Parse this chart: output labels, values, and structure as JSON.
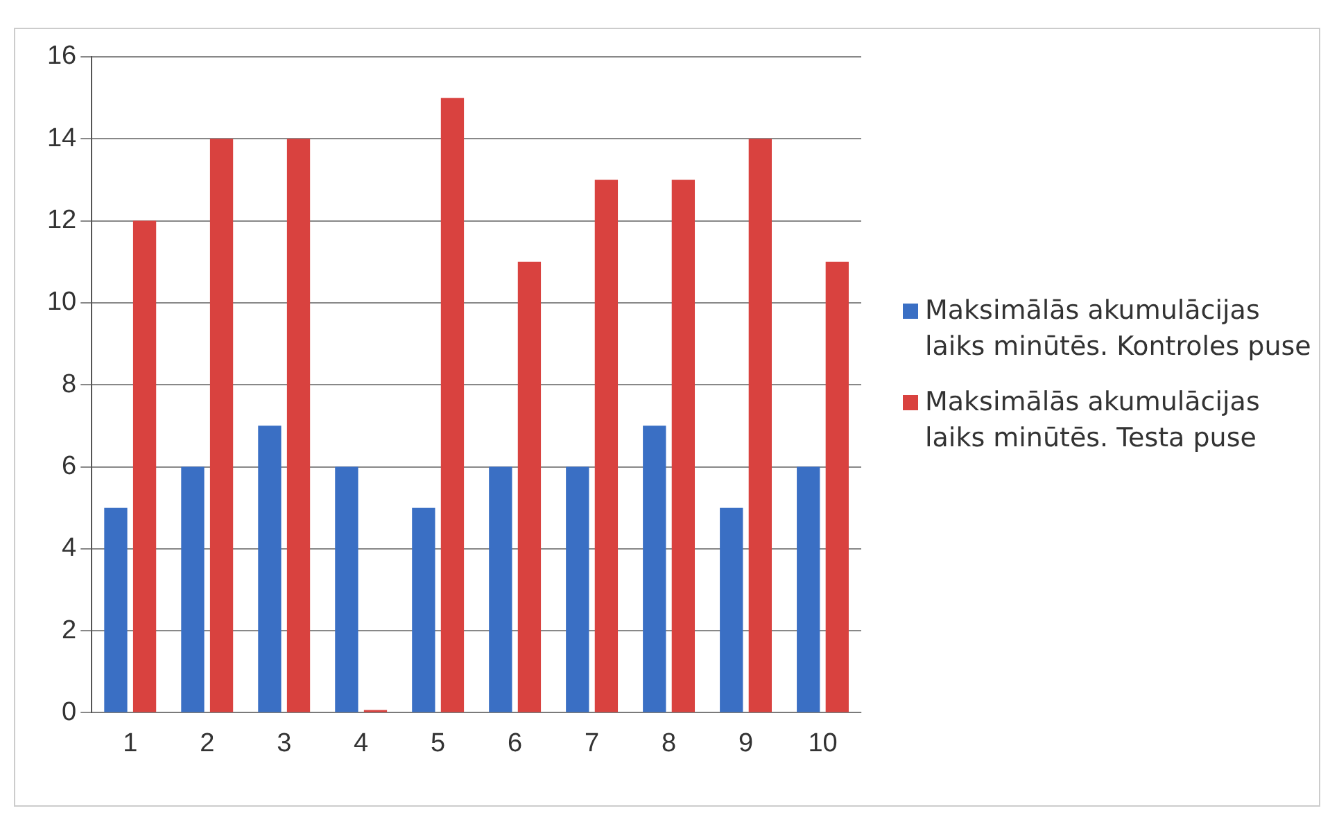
{
  "chart_data": {
    "type": "bar",
    "categories": [
      "1",
      "2",
      "3",
      "4",
      "5",
      "6",
      "7",
      "8",
      "9",
      "10"
    ],
    "series": [
      {
        "name": "Maksimālās akumulācijas laiks minūtēs. Kontroles puse",
        "color": "#3a6fc4",
        "values": [
          5,
          6,
          7,
          6,
          5,
          6,
          6,
          7,
          5,
          6
        ]
      },
      {
        "name": "Maksimālās akumulācijas laiks minūtēs. Testa puse",
        "color": "#d9423f",
        "values": [
          12,
          14,
          14,
          0,
          15,
          11,
          13,
          13,
          14,
          11
        ]
      }
    ],
    "ylim": [
      0,
      16
    ],
    "yticks": [
      0,
      2,
      4,
      6,
      8,
      10,
      12,
      14,
      16
    ],
    "grid": "y",
    "legend": "right"
  }
}
